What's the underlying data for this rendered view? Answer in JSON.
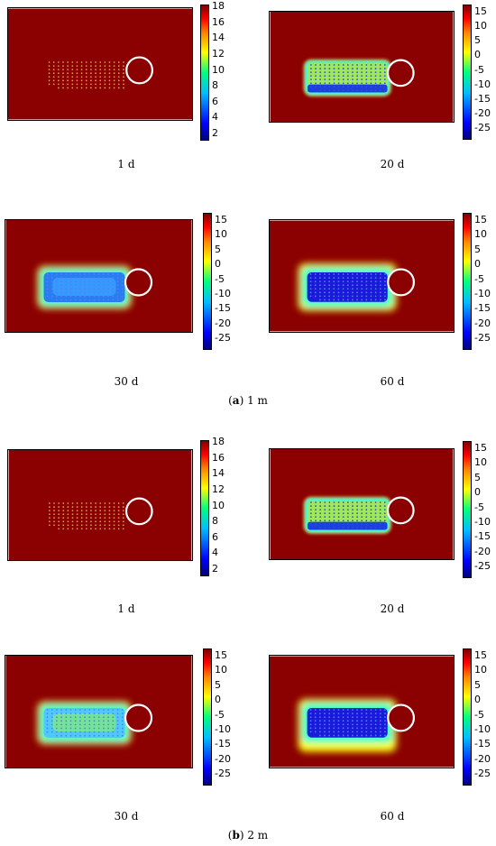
{
  "colors": {
    "background": "#8b0000",
    "frozen_core": "#1a1ad8",
    "warm_core": "#4fc6ff",
    "ring": "#ffffff",
    "points": "#d4a050"
  },
  "colorbar_a": [
    "18",
    "16",
    "14",
    "12",
    "10",
    "8",
    "6",
    "4",
    "2"
  ],
  "colorbar_b": [
    "15",
    "10",
    "5",
    "0",
    "-5",
    "-10",
    "-15",
    "-20",
    "-25"
  ],
  "groups": [
    {
      "label_letter": "a",
      "label_rest": " 1 m",
      "panels": [
        {
          "time": "1 d",
          "scale": "colorbar_a",
          "state": 0
        },
        {
          "time": "20 d",
          "scale": "colorbar_b",
          "state": 1
        },
        {
          "time": "30 d",
          "scale": "colorbar_b",
          "state": 2
        },
        {
          "time": "60 d",
          "scale": "colorbar_b",
          "state": 3
        }
      ]
    },
    {
      "label_letter": "b",
      "label_rest": " 2 m",
      "panels": [
        {
          "time": "1 d",
          "scale": "colorbar_a",
          "state": 0
        },
        {
          "time": "20 d",
          "scale": "colorbar_b",
          "state": 1
        },
        {
          "time": "30 d",
          "scale": "colorbar_b",
          "state": 2
        },
        {
          "time": "60 d",
          "scale": "colorbar_b",
          "state": 3
        }
      ]
    }
  ]
}
